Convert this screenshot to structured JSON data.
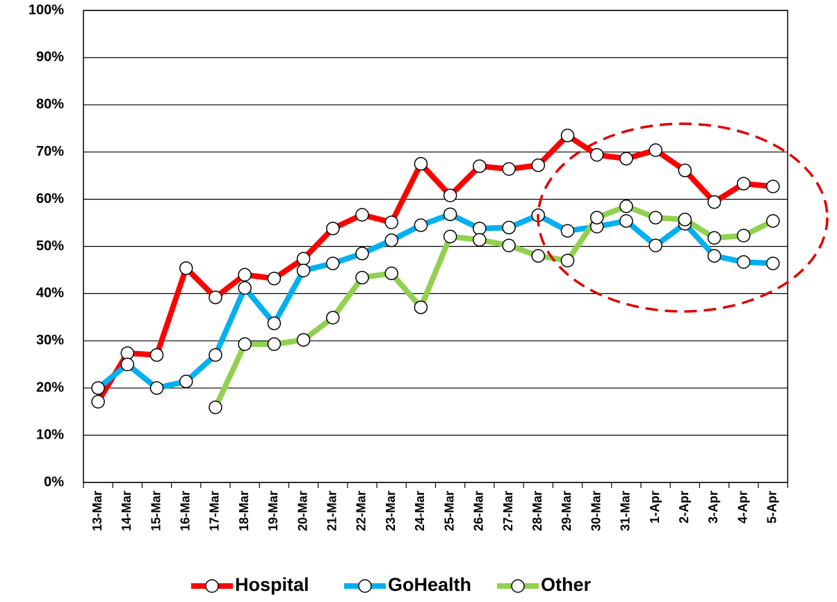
{
  "chart_data": {
    "type": "line",
    "categories": [
      "13-Mar",
      "14-Mar",
      "15-Mar",
      "16-Mar",
      "17-Mar",
      "18-Mar",
      "19-Mar",
      "20-Mar",
      "21-Mar",
      "22-Mar",
      "23-Mar",
      "24-Mar",
      "25-Mar",
      "26-Mar",
      "27-Mar",
      "28-Mar",
      "29-Mar",
      "30-Mar",
      "31-Mar",
      "1-Apr",
      "2-Apr",
      "3-Apr",
      "4-Apr",
      "5-Apr"
    ],
    "series": [
      {
        "name": "Hospital",
        "color": "#ff0000",
        "values": [
          17.1,
          27.4,
          27.0,
          45.4,
          39.2,
          44.0,
          43.2,
          47.4,
          53.8,
          56.7,
          55.1,
          67.5,
          60.8,
          67.0,
          66.4,
          67.2,
          73.5,
          69.4,
          68.6,
          70.4,
          66.1,
          59.4,
          63.3,
          62.7
        ]
      },
      {
        "name": "GoHealth",
        "color": "#00b0f0",
        "values": [
          20.0,
          25.0,
          20.0,
          21.4,
          27.0,
          41.2,
          33.7,
          44.9,
          46.4,
          48.5,
          51.3,
          54.5,
          56.8,
          53.8,
          54.0,
          56.6,
          53.3,
          54.2,
          55.4,
          50.2,
          54.8,
          48.0,
          46.7,
          46.4
        ]
      },
      {
        "name": "Other",
        "color": "#92d050",
        "values": [
          null,
          null,
          null,
          null,
          15.9,
          29.3,
          29.3,
          30.2,
          34.9,
          43.4,
          44.3,
          37.1,
          52.1,
          51.4,
          50.2,
          48.0,
          47.0,
          56.1,
          58.5,
          56.1,
          55.7,
          51.8,
          52.3,
          55.4
        ]
      }
    ],
    "ylim": [
      0,
      100
    ],
    "yticks": [
      {
        "value": 0,
        "label": "0%"
      },
      {
        "value": 10,
        "label": "10%"
      },
      {
        "value": 20,
        "label": "20%"
      },
      {
        "value": 30,
        "label": "30%"
      },
      {
        "value": 40,
        "label": "40%"
      },
      {
        "value": 50,
        "label": "50%"
      },
      {
        "value": 60,
        "label": "60%"
      },
      {
        "value": 70,
        "label": "70%"
      },
      {
        "value": 80,
        "label": "80%"
      },
      {
        "value": 90,
        "label": "90%"
      },
      {
        "value": 100,
        "label": "100%"
      }
    ],
    "grid": true,
    "legend": "bottom"
  }
}
